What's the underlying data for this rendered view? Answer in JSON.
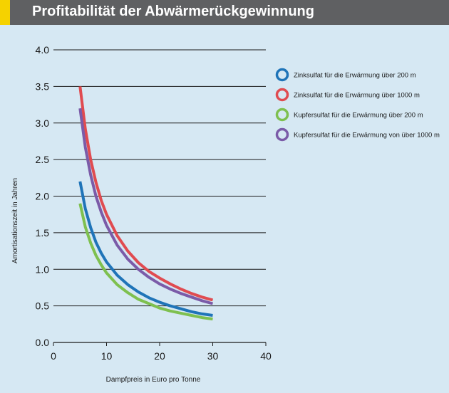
{
  "header": {
    "title": "Profitabilität der Abwärmerückgewinnung",
    "accent_color": "#f5d200"
  },
  "chart_data": {
    "type": "line",
    "title": "Profitabilität der Abwärmerückgewinnung",
    "xlabel": "Dampfpreis in Euro pro Tonne",
    "ylabel": "Amortisationszeit in Jahren",
    "xlim": [
      0,
      40
    ],
    "ylim": [
      0,
      4
    ],
    "x_ticks": [
      "0",
      "10",
      "20",
      "30",
      "40"
    ],
    "y_ticks": [
      "0.0",
      "0.5",
      "1.0",
      "1.5",
      "2.0",
      "2.5",
      "3.0",
      "3.5",
      "4.0"
    ],
    "grid": "horizontal",
    "legend_position": "right",
    "series": [
      {
        "name": "Zinksulfat für die Erwärmung über 200 m",
        "color": "#1f74b8",
        "x": [
          5,
          6,
          7,
          8,
          9,
          10,
          12,
          14,
          16,
          18,
          20,
          22,
          24,
          26,
          28,
          30
        ],
        "y": [
          2.2,
          1.83,
          1.57,
          1.37,
          1.22,
          1.1,
          0.92,
          0.79,
          0.69,
          0.61,
          0.55,
          0.5,
          0.46,
          0.42,
          0.39,
          0.37
        ]
      },
      {
        "name": "Zinksulfat für die Erwärmung über 1000 m",
        "color": "#e04b50",
        "x": [
          5,
          6,
          7,
          8,
          9,
          10,
          12,
          14,
          16,
          18,
          20,
          22,
          24,
          26,
          28,
          30
        ],
        "y": [
          3.5,
          2.92,
          2.5,
          2.19,
          1.94,
          1.75,
          1.46,
          1.25,
          1.09,
          0.97,
          0.88,
          0.8,
          0.73,
          0.67,
          0.62,
          0.58
        ]
      },
      {
        "name": "Kupfersulfat für die Erwärmung über 200 m",
        "color": "#7ec04f",
        "x": [
          5,
          6,
          7,
          8,
          9,
          10,
          12,
          14,
          16,
          18,
          20,
          22,
          24,
          26,
          28,
          30
        ],
        "y": [
          1.9,
          1.58,
          1.36,
          1.19,
          1.06,
          0.95,
          0.79,
          0.68,
          0.59,
          0.53,
          0.47,
          0.43,
          0.4,
          0.37,
          0.34,
          0.32
        ]
      },
      {
        "name": "Kupfersulfat für die Erwärmung von über 1000 m",
        "color": "#7b5ba8",
        "x": [
          5,
          6,
          7,
          8,
          9,
          10,
          12,
          14,
          16,
          18,
          20,
          22,
          24,
          26,
          28,
          30
        ],
        "y": [
          3.2,
          2.67,
          2.29,
          2.0,
          1.78,
          1.6,
          1.33,
          1.14,
          1.0,
          0.89,
          0.8,
          0.73,
          0.67,
          0.62,
          0.57,
          0.53
        ]
      }
    ]
  }
}
